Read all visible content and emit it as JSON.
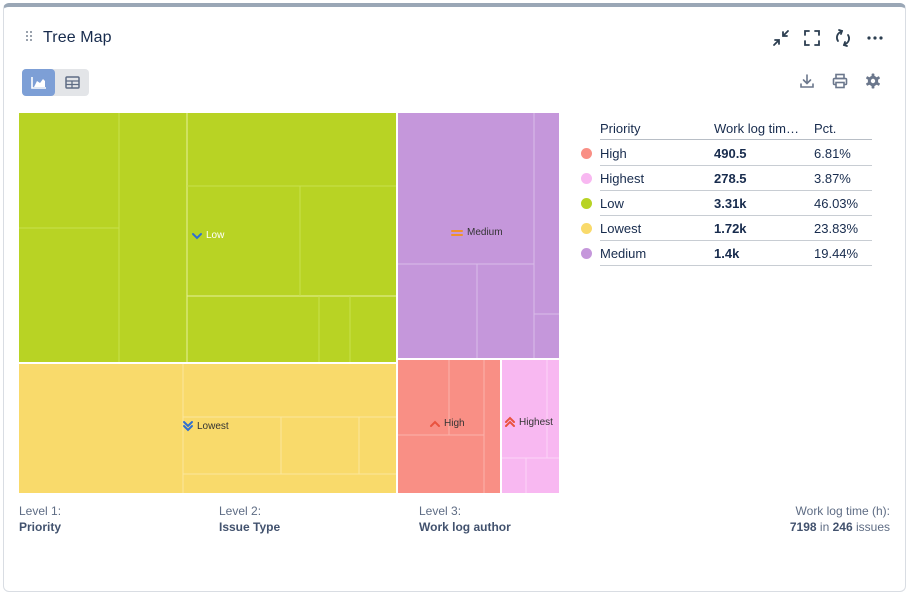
{
  "header": {
    "title": "Tree Map",
    "icons": [
      "collapse-icon",
      "fullscreen-icon",
      "refresh-icon",
      "more-icon"
    ]
  },
  "view_toggle": {
    "active": "chart",
    "options": [
      "chart-icon",
      "table-icon"
    ]
  },
  "actions": [
    "download-icon",
    "print-icon",
    "settings-icon"
  ],
  "colors": {
    "High": "#f98f85",
    "Highest": "#f8b8f1",
    "Low": "#b8d324",
    "Lowest": "#f9da6b",
    "Medium": "#c597db"
  },
  "chart_data": {
    "type": "treemap",
    "title": "Tree Map",
    "nodes": [
      {
        "name": "Low",
        "value": 3310,
        "pct": 46.03
      },
      {
        "name": "Lowest",
        "value": 1720,
        "pct": 23.83
      },
      {
        "name": "Medium",
        "value": 1400,
        "pct": 19.44
      },
      {
        "name": "High",
        "value": 490.5,
        "pct": 6.81
      },
      {
        "name": "Highest",
        "value": 278.5,
        "pct": 3.87
      }
    ]
  },
  "legend": {
    "headers": {
      "priority": "Priority",
      "worklog": "Work log tim…",
      "pct": "Pct."
    },
    "rows": [
      {
        "name": "High",
        "value": "490.5",
        "pct": "6.81%",
        "color": "#f98f85"
      },
      {
        "name": "Highest",
        "value": "278.5",
        "pct": "3.87%",
        "color": "#f8b8f1"
      },
      {
        "name": "Low",
        "value": "3.31k",
        "pct": "46.03%",
        "color": "#b8d324"
      },
      {
        "name": "Lowest",
        "value": "1.72k",
        "pct": "23.83%",
        "color": "#f9da6b"
      },
      {
        "name": "Medium",
        "value": "1.4k",
        "pct": "19.44%",
        "color": "#c597db"
      }
    ]
  },
  "footer": {
    "level1": {
      "label": "Level 1:",
      "value": "Priority"
    },
    "level2": {
      "label": "Level 2:",
      "value": "Issue Type"
    },
    "level3": {
      "label": "Level 3:",
      "value": "Work log author"
    },
    "summary": {
      "label": "Work log time (h):",
      "total": "7198",
      "in_text": "in",
      "issues": "246",
      "issues_text": "issues"
    }
  }
}
